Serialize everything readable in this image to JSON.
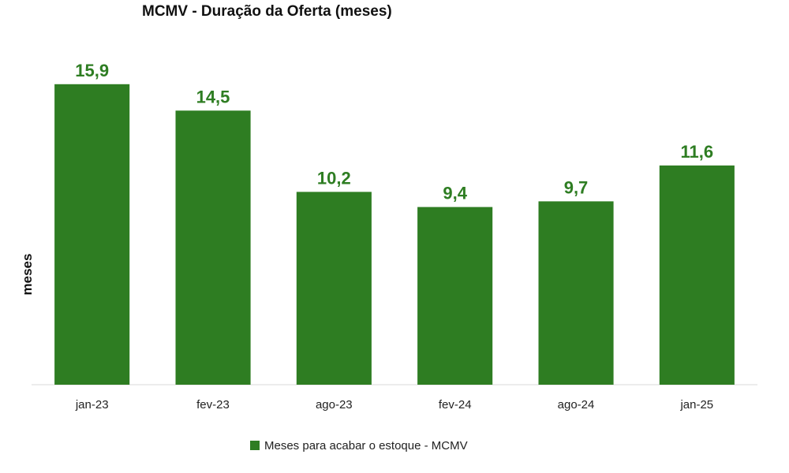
{
  "chart_data": {
    "type": "bar",
    "title": "MCMV - Duração da Oferta (meses)",
    "ylabel": "meses",
    "xlabel": "",
    "categories": [
      "jan-23",
      "fev-23",
      "ago-23",
      "fev-24",
      "ago-24",
      "jan-25"
    ],
    "series": [
      {
        "name": "Meses para acabar o estoque - MCMV",
        "values": [
          15.9,
          14.5,
          10.2,
          9.4,
          9.7,
          11.6
        ],
        "labels": [
          "15,9",
          "14,5",
          "10,2",
          "9,4",
          "9,7",
          "11,6"
        ],
        "color": "#2e7d22"
      }
    ],
    "ylim": [
      0,
      16.6
    ],
    "grid": false,
    "legend_position": "bottom",
    "label_color": "#2e7d22"
  }
}
